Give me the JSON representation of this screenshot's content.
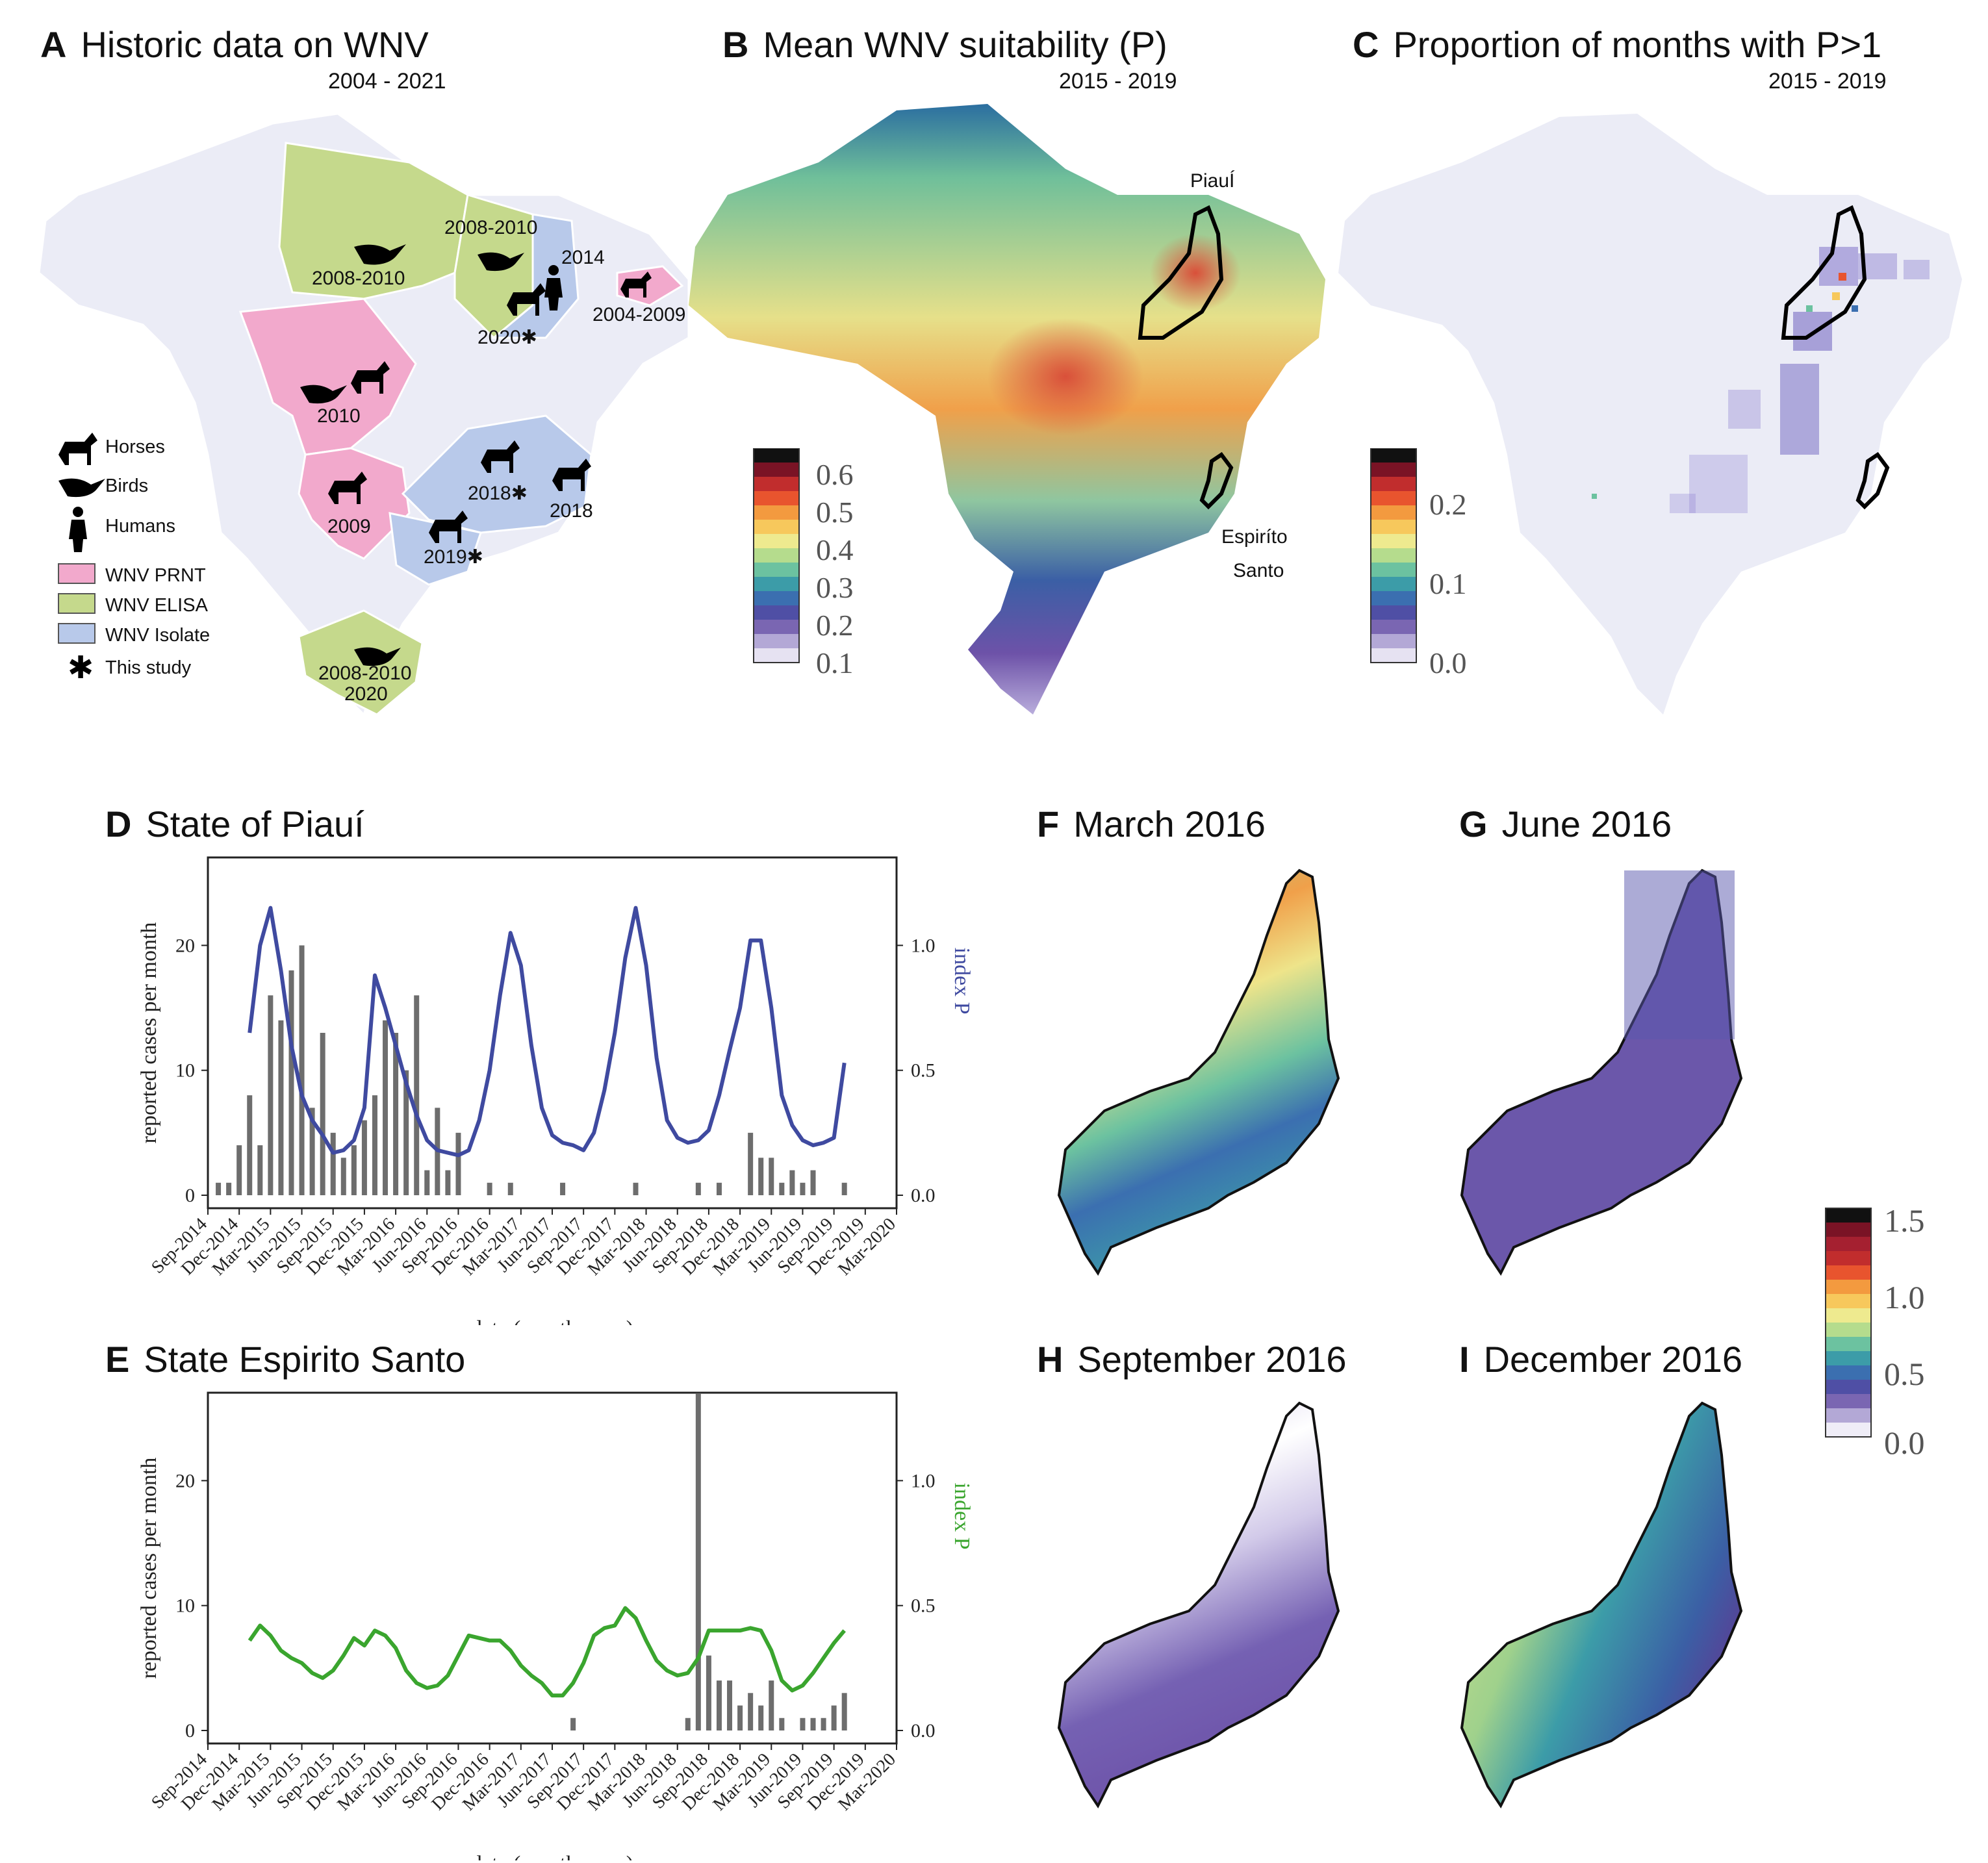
{
  "panels": {
    "A": {
      "letter": "A",
      "title": "Historic data on WNV",
      "years": "2004 - 2021"
    },
    "B": {
      "letter": "B",
      "title": "Mean WNV suitability (P)",
      "years": "2015 - 2019"
    },
    "C": {
      "letter": "C",
      "title": "Proportion of months with P>1",
      "years": "2015 - 2019"
    },
    "D": {
      "letter": "D",
      "title": "State of Piauí"
    },
    "E": {
      "letter": "E",
      "title": "State Espirito Santo"
    },
    "F": {
      "letter": "F",
      "title": "March 2016"
    },
    "G": {
      "letter": "G",
      "title": "June 2016"
    },
    "H": {
      "letter": "H",
      "title": "September 2016"
    },
    "I": {
      "letter": "I",
      "title": "December 2016"
    }
  },
  "mapA": {
    "labels": {
      "north": "2008-2010",
      "maranhao": "2008-2010",
      "piaui_years": "2014",
      "piaui_2020": "2020✱",
      "paraiba": "2004-2009",
      "mato_grosso": "2010",
      "ms": "2009",
      "mg": "2018✱",
      "es": "2018",
      "sp": "2019✱",
      "rs1": "2008-2010",
      "rs2": "2020"
    },
    "legend": {
      "horses": "Horses",
      "birds": "Birds",
      "humans": "Humans",
      "prnt": "WNV PRNT",
      "elisa": "WNV ELISA",
      "isolate": "WNV Isolate",
      "this_study": "This study"
    },
    "colors": {
      "prnt": "#f2a9cc",
      "elisa": "#c5d98c",
      "isolate": "#b8c9ea",
      "land": "#ebecf6"
    }
  },
  "mapB": {
    "labels": {
      "piaui": "PiauÍ",
      "es1": "Espiríto",
      "es2": "Santo"
    },
    "colorbar_ticks": [
      "0.6",
      "0.5",
      "0.4",
      "0.3",
      "0.2",
      "0.1"
    ]
  },
  "mapC": {
    "colorbar_ticks": [
      "0.2",
      "0.1",
      "0.0"
    ]
  },
  "colorbar_FI": {
    "ticks": [
      "1.5",
      "1.0",
      "0.5",
      "0.0"
    ]
  },
  "colors": {
    "bar": "#6d6d6d",
    "lineD": "#3f4aa0",
    "lineE": "#3aa52e"
  },
  "chart_data": [
    {
      "type": "bar+line",
      "title": "State of Piauí",
      "xlabel": "date (month, year)",
      "ylabel": "reported cases per month",
      "y2label": "index P",
      "ylim": [
        0,
        26
      ],
      "y2lim": [
        0,
        1.3
      ],
      "yticks": [
        0,
        10,
        20
      ],
      "y2ticks": [
        "0.0",
        "0.5",
        "1.0"
      ],
      "xticks": [
        "Sep-2014",
        "Dec-2014",
        "Mar-2015",
        "Jun-2015",
        "Sep-2015",
        "Dec-2015",
        "Mar-2016",
        "Jun-2016",
        "Sep-2016",
        "Dec-2016",
        "Mar-2017",
        "Jun-2017",
        "Sep-2017",
        "Dec-2017",
        "Mar-2018",
        "Jun-2018",
        "Sep-2018",
        "Dec-2018",
        "Mar-2019",
        "Jun-2019",
        "Sep-2019",
        "Dec-2019",
        "Mar-2020"
      ],
      "bars_series": [
        {
          "name": "reported cases",
          "points": [
            [
              1,
              1
            ],
            [
              2,
              1
            ],
            [
              3,
              4
            ],
            [
              4,
              8
            ],
            [
              5,
              4
            ],
            [
              6,
              16
            ],
            [
              7,
              14
            ],
            [
              8,
              18
            ],
            [
              9,
              20
            ],
            [
              10,
              7
            ],
            [
              11,
              13
            ],
            [
              12,
              5
            ],
            [
              13,
              3
            ],
            [
              14,
              4
            ],
            [
              15,
              6
            ],
            [
              16,
              8
            ],
            [
              17,
              14
            ],
            [
              18,
              13
            ],
            [
              19,
              10
            ],
            [
              20,
              16
            ],
            [
              21,
              2
            ],
            [
              22,
              7
            ],
            [
              23,
              2
            ],
            [
              24,
              5
            ],
            [
              27,
              1
            ],
            [
              29,
              1
            ],
            [
              34,
              1
            ],
            [
              41,
              1
            ],
            [
              47,
              1
            ],
            [
              49,
              1
            ],
            [
              52,
              5
            ],
            [
              53,
              3
            ],
            [
              54,
              3
            ],
            [
              55,
              1
            ],
            [
              56,
              2
            ],
            [
              57,
              1
            ],
            [
              58,
              2
            ],
            [
              61,
              1
            ]
          ]
        }
      ],
      "line_series": {
        "name": "index P",
        "color": "#3f4aa0",
        "points": [
          [
            4,
            0.65
          ],
          [
            5,
            1.0
          ],
          [
            6,
            1.15
          ],
          [
            7,
            0.9
          ],
          [
            8,
            0.6
          ],
          [
            9,
            0.4
          ],
          [
            10,
            0.3
          ],
          [
            11,
            0.24
          ],
          [
            12,
            0.17
          ],
          [
            13,
            0.18
          ],
          [
            14,
            0.22
          ],
          [
            15,
            0.35
          ],
          [
            16,
            0.88
          ],
          [
            17,
            0.75
          ],
          [
            18,
            0.6
          ],
          [
            19,
            0.45
          ],
          [
            20,
            0.32
          ],
          [
            21,
            0.22
          ],
          [
            22,
            0.18
          ],
          [
            23,
            0.17
          ],
          [
            24,
            0.16
          ],
          [
            25,
            0.18
          ],
          [
            26,
            0.3
          ],
          [
            27,
            0.5
          ],
          [
            28,
            0.8
          ],
          [
            29,
            1.05
          ],
          [
            30,
            0.92
          ],
          [
            31,
            0.6
          ],
          [
            32,
            0.35
          ],
          [
            33,
            0.24
          ],
          [
            34,
            0.21
          ],
          [
            35,
            0.2
          ],
          [
            36,
            0.18
          ],
          [
            37,
            0.25
          ],
          [
            38,
            0.42
          ],
          [
            39,
            0.65
          ],
          [
            40,
            0.95
          ],
          [
            41,
            1.15
          ],
          [
            42,
            0.92
          ],
          [
            43,
            0.55
          ],
          [
            44,
            0.3
          ],
          [
            45,
            0.23
          ],
          [
            46,
            0.21
          ],
          [
            47,
            0.22
          ],
          [
            48,
            0.26
          ],
          [
            49,
            0.4
          ],
          [
            50,
            0.58
          ],
          [
            51,
            0.75
          ],
          [
            52,
            1.02
          ],
          [
            53,
            1.02
          ],
          [
            54,
            0.75
          ],
          [
            55,
            0.4
          ],
          [
            56,
            0.28
          ],
          [
            57,
            0.22
          ],
          [
            58,
            0.2
          ],
          [
            59,
            0.21
          ],
          [
            60,
            0.23
          ],
          [
            61,
            0.53
          ]
        ]
      }
    },
    {
      "type": "bar+line",
      "title": "State Espirito Santo",
      "xlabel": "date (month, year)",
      "ylabel": "reported cases per month",
      "y2label": "index P",
      "ylim": [
        0,
        26
      ],
      "y2lim": [
        0,
        1.3
      ],
      "yticks": [
        0,
        10,
        20
      ],
      "y2ticks": [
        "0.0",
        "0.5",
        "1.0"
      ],
      "xticks": [
        "Sep-2014",
        "Dec-2014",
        "Mar-2015",
        "Jun-2015",
        "Sep-2015",
        "Dec-2015",
        "Mar-2016",
        "Jun-2016",
        "Sep-2016",
        "Dec-2016",
        "Mar-2017",
        "Jun-2017",
        "Sep-2017",
        "Dec-2017",
        "Mar-2018",
        "Jun-2018",
        "Sep-2018",
        "Dec-2018",
        "Mar-2019",
        "Jun-2019",
        "Sep-2019",
        "Dec-2019",
        "Mar-2020"
      ],
      "bars_series": [
        {
          "name": "reported cases",
          "points": [
            [
              35,
              1
            ],
            [
              46,
              1
            ],
            [
              47,
              27
            ],
            [
              48,
              6
            ],
            [
              49,
              4
            ],
            [
              50,
              4
            ],
            [
              51,
              2
            ],
            [
              52,
              3
            ],
            [
              53,
              2
            ],
            [
              54,
              4
            ],
            [
              55,
              1
            ],
            [
              57,
              1
            ],
            [
              58,
              1
            ],
            [
              59,
              1
            ],
            [
              60,
              2
            ],
            [
              61,
              3
            ]
          ]
        }
      ],
      "line_series": {
        "name": "index P",
        "color": "#3aa52e",
        "points": [
          [
            4,
            0.36
          ],
          [
            5,
            0.42
          ],
          [
            6,
            0.38
          ],
          [
            7,
            0.32
          ],
          [
            8,
            0.29
          ],
          [
            9,
            0.27
          ],
          [
            10,
            0.23
          ],
          [
            11,
            0.21
          ],
          [
            12,
            0.24
          ],
          [
            13,
            0.3
          ],
          [
            14,
            0.37
          ],
          [
            15,
            0.34
          ],
          [
            16,
            0.4
          ],
          [
            17,
            0.38
          ],
          [
            18,
            0.33
          ],
          [
            19,
            0.24
          ],
          [
            20,
            0.19
          ],
          [
            21,
            0.17
          ],
          [
            22,
            0.18
          ],
          [
            23,
            0.22
          ],
          [
            24,
            0.3
          ],
          [
            25,
            0.38
          ],
          [
            26,
            0.37
          ],
          [
            27,
            0.36
          ],
          [
            28,
            0.36
          ],
          [
            29,
            0.32
          ],
          [
            30,
            0.26
          ],
          [
            31,
            0.22
          ],
          [
            32,
            0.19
          ],
          [
            33,
            0.14
          ],
          [
            34,
            0.14
          ],
          [
            35,
            0.19
          ],
          [
            36,
            0.27
          ],
          [
            37,
            0.38
          ],
          [
            38,
            0.41
          ],
          [
            39,
            0.42
          ],
          [
            40,
            0.49
          ],
          [
            41,
            0.45
          ],
          [
            42,
            0.36
          ],
          [
            43,
            0.28
          ],
          [
            44,
            0.24
          ],
          [
            45,
            0.22
          ],
          [
            46,
            0.23
          ],
          [
            47,
            0.29
          ],
          [
            48,
            0.4
          ],
          [
            49,
            0.4
          ],
          [
            50,
            0.4
          ],
          [
            51,
            0.4
          ],
          [
            52,
            0.41
          ],
          [
            53,
            0.4
          ],
          [
            54,
            0.32
          ],
          [
            55,
            0.2
          ],
          [
            56,
            0.16
          ],
          [
            57,
            0.18
          ],
          [
            58,
            0.23
          ],
          [
            59,
            0.29
          ],
          [
            60,
            0.35
          ],
          [
            61,
            0.4
          ]
        ]
      }
    }
  ]
}
